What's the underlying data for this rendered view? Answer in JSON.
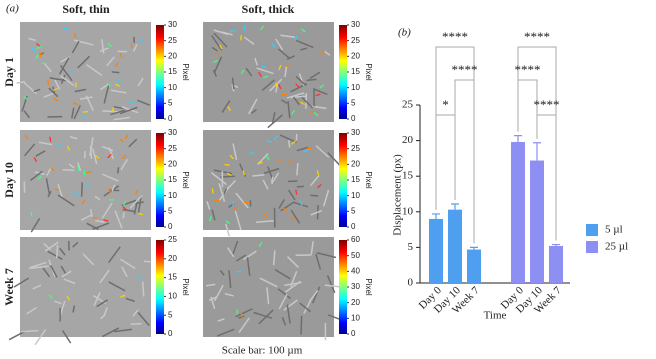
{
  "panel_a": {
    "label": "(a)",
    "columns": [
      "Soft, thin",
      "Soft, thick"
    ],
    "rows": [
      "Day 1",
      "Day 10",
      "Week 7"
    ],
    "colorbar_label": "Pixel",
    "colorbars": [
      {
        "ticks": [
          0,
          5,
          10,
          15,
          20,
          25,
          30
        ]
      },
      {
        "ticks": [
          0,
          5,
          10,
          15,
          20,
          25,
          30
        ]
      },
      {
        "ticks": [
          0,
          5,
          10,
          15,
          20,
          25,
          30
        ]
      },
      {
        "ticks": [
          0,
          5,
          10,
          15,
          20,
          25,
          30
        ]
      },
      {
        "ticks": [
          0,
          5,
          10,
          15,
          20,
          25
        ]
      },
      {
        "ticks": [
          0,
          10,
          20,
          30,
          40,
          50,
          60
        ]
      }
    ],
    "scale_bar": "Scale bar: 100 µm"
  },
  "chart_data": {
    "type": "bar",
    "panel_label": "(b)",
    "y_label": "Displacement (px)",
    "x_label": "Time",
    "categories": [
      "Day 0",
      "Day 10",
      "Week 7"
    ],
    "series": [
      {
        "name": "5 µl",
        "color": "#4f9ff0",
        "values": [
          9.0,
          10.3,
          4.7
        ],
        "errors": [
          0.7,
          0.8,
          0.3
        ]
      },
      {
        "name": "25 µl",
        "color": "#8d8ff2",
        "values": [
          19.8,
          17.2,
          5.2
        ],
        "errors": [
          0.9,
          2.5,
          0.2
        ]
      }
    ],
    "ylim": [
      0,
      25
    ],
    "yticks": [
      0,
      5,
      10,
      15,
      20,
      25
    ],
    "legend": "right",
    "annotations": [
      "****",
      "****",
      "*",
      "****",
      "****",
      "****"
    ]
  }
}
